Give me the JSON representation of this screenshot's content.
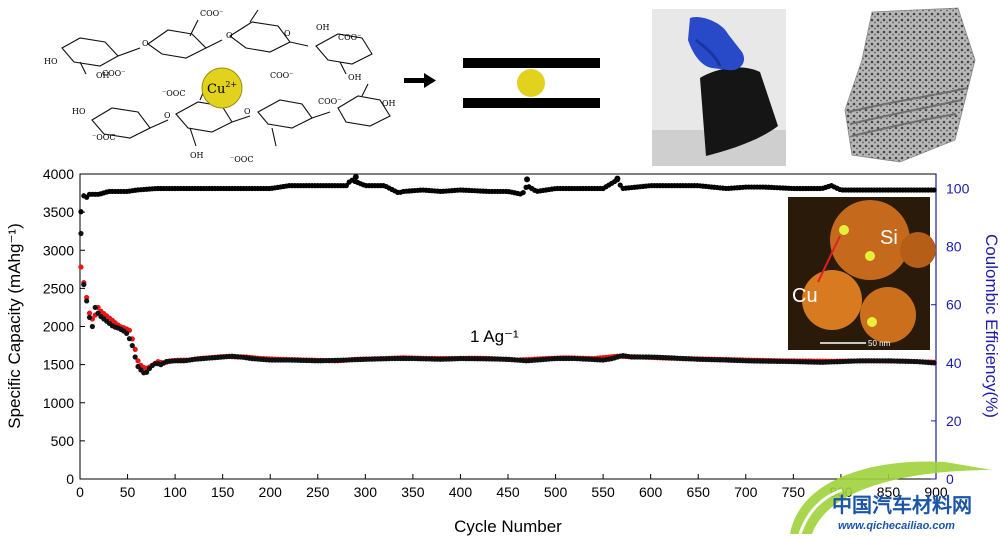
{
  "scheme": {
    "labels": [
      "COO⁻",
      "HO",
      "OH",
      "HO",
      "O",
      "O",
      "COO⁻",
      "OH",
      "⁻OOC",
      "O"
    ],
    "cation": "Cu",
    "cation_charge": "2+",
    "colors": {
      "cu_ball": "#e2d21e",
      "ball_stroke": "#9a8d10"
    }
  },
  "chart_data": {
    "type": "scatter",
    "xlabel": "Cycle Number",
    "ylabel": "Specific Capacity (mAhg⁻¹)",
    "y2label": "Coulombic Efficiency(%)",
    "xlim": [
      0,
      900
    ],
    "ylim": [
      0,
      4000
    ],
    "y2lim": [
      0,
      105
    ],
    "xticks": [
      0,
      50,
      100,
      150,
      200,
      250,
      300,
      350,
      400,
      450,
      500,
      550,
      600,
      650,
      700,
      750,
      800,
      850,
      900
    ],
    "yticks": [
      0,
      500,
      1000,
      1500,
      2000,
      2500,
      3000,
      3500,
      4000
    ],
    "y2ticks": [
      0,
      20,
      40,
      60,
      80,
      100
    ],
    "annotation": "1 Ag⁻¹",
    "colors": {
      "capacity": "#e81616",
      "capacity2": "#111111",
      "efficiency": "#000000",
      "right_axis": "#1c1caa"
    },
    "series": [
      {
        "axis": "left",
        "x": [
          1,
          2,
          4,
          6,
          8,
          10,
          12,
          14,
          16,
          18,
          20,
          25,
          30,
          35,
          40,
          45,
          50,
          55,
          58,
          60,
          62,
          65,
          68,
          70,
          75,
          80,
          85,
          90,
          100,
          110,
          120,
          130,
          140,
          150,
          160,
          170,
          180,
          200,
          220,
          250,
          280,
          300,
          330,
          350,
          380,
          400,
          430,
          450,
          470,
          480,
          500,
          520,
          550,
          560,
          570,
          580,
          600,
          620,
          650,
          680,
          700,
          720,
          750,
          780,
          800,
          820,
          850,
          880,
          900
        ],
        "values": [
          3220,
          2780,
          2550,
          2420,
          2250,
          2120,
          2050,
          1950,
          2250,
          2200,
          2150,
          2100,
          2050,
          2000,
          1980,
          1950,
          1900,
          1750,
          1600,
          1500,
          1450,
          1420,
          1380,
          1400,
          1480,
          1520,
          1500,
          1540,
          1550,
          1550,
          1570,
          1580,
          1590,
          1600,
          1610,
          1600,
          1580,
          1560,
          1560,
          1550,
          1560,
          1570,
          1580,
          1580,
          1570,
          1580,
          1575,
          1570,
          1550,
          1560,
          1580,
          1580,
          1560,
          1580,
          1620,
          1600,
          1600,
          1590,
          1570,
          1560,
          1550,
          1545,
          1540,
          1530,
          1540,
          1550,
          1550,
          1540,
          1520
        ]
      },
      {
        "axis": "left",
        "x": [
          1,
          3,
          5,
          7,
          9,
          11,
          13,
          15,
          17,
          19,
          22,
          27,
          32,
          37,
          42,
          47,
          52,
          56,
          59,
          61,
          63,
          66,
          69,
          72,
          77,
          82,
          88,
          95,
          105,
          115,
          125,
          135,
          145,
          155,
          165,
          175,
          190,
          210,
          240,
          270,
          290,
          320,
          340,
          370,
          390,
          420,
          440,
          460,
          490,
          510,
          540,
          565,
          590,
          630,
          670,
          700,
          740,
          790,
          830,
          870,
          900
        ],
        "values": [
          2780,
          2650,
          2500,
          2380,
          2200,
          2150,
          2100,
          2000,
          2300,
          2250,
          2200,
          2150,
          2100,
          2050,
          2000,
          1980,
          1950,
          1800,
          1650,
          1550,
          1500,
          1470,
          1450,
          1460,
          1500,
          1540,
          1520,
          1550,
          1560,
          1560,
          1580,
          1590,
          1600,
          1610,
          1600,
          1600,
          1580,
          1570,
          1560,
          1550,
          1570,
          1580,
          1590,
          1580,
          1580,
          1585,
          1575,
          1560,
          1580,
          1590,
          1580,
          1610,
          1600,
          1580,
          1570,
          1560,
          1550,
          1545,
          1550,
          1545,
          1530
        ]
      },
      {
        "axis": "right",
        "x": [
          1,
          3,
          5,
          8,
          10,
          15,
          20,
          30,
          40,
          50,
          60,
          80,
          100,
          150,
          200,
          220,
          250,
          280,
          285,
          300,
          320,
          335,
          340,
          360,
          380,
          400,
          430,
          450,
          465,
          470,
          480,
          500,
          520,
          550,
          565,
          570,
          600,
          630,
          650,
          680,
          700,
          720,
          750,
          780,
          790,
          800,
          820,
          850,
          880,
          900
        ],
        "values": [
          92,
          98,
          97,
          97,
          98,
          98,
          98,
          99,
          99,
          99,
          99.5,
          100,
          100,
          100,
          100,
          101,
          101,
          101,
          103,
          101,
          101,
          98.5,
          99,
          99.5,
          99,
          99.5,
          99,
          99,
          98,
          101,
          99,
          100,
          100,
          100,
          103,
          100,
          101,
          101,
          101,
          100,
          100.5,
          100.5,
          100,
          100,
          101,
          99.5,
          99.5,
          99.5,
          99.5,
          99.5
        ]
      }
    ],
    "points": [
      {
        "x": 290,
        "y": 3960,
        "axis": "left"
      },
      {
        "x": 470,
        "y": 3930,
        "axis": "left"
      },
      {
        "x": 565,
        "y": 3940,
        "axis": "left"
      }
    ]
  },
  "inset": {
    "labels": {
      "si": "Si",
      "cu": "Cu",
      "scale": "50 nm"
    },
    "colors": {
      "background": "#2a1a0a",
      "particle": "#d87a20",
      "cu_dot": "#e6f03a",
      "arrow": "#e02020"
    }
  },
  "watermark": {
    "name": "中国汽车材料网",
    "url": "www.qichecailiao.com",
    "colors": {
      "arc": "#9fd23c",
      "text": "#1a55a8"
    }
  }
}
